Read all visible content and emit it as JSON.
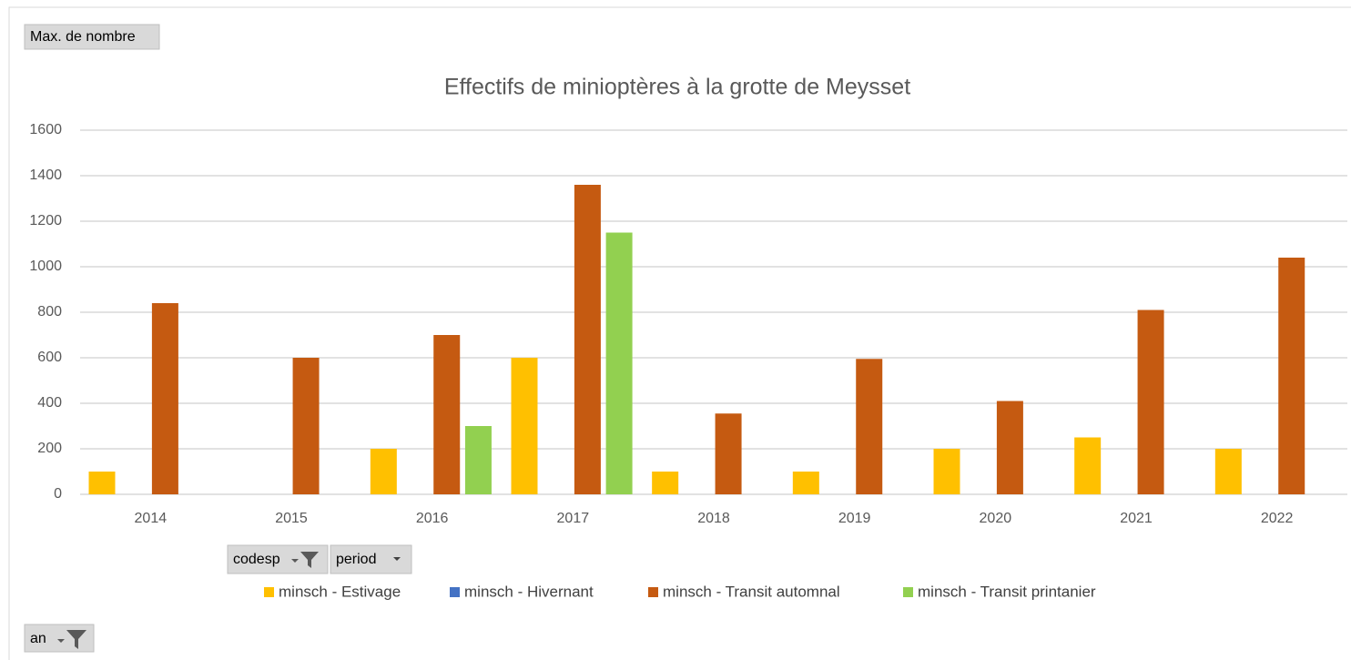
{
  "chart_data": {
    "type": "bar",
    "title": "Effectifs de minioptères à la grotte de Meysset",
    "categories": [
      "2014",
      "2015",
      "2016",
      "2017",
      "2018",
      "2019",
      "2020",
      "2021",
      "2022"
    ],
    "series": [
      {
        "name": "minsch - Estivage",
        "color": "#ffc000",
        "values": [
          100,
          null,
          200,
          600,
          100,
          100,
          200,
          250,
          200
        ]
      },
      {
        "name": "minsch - Hivernant",
        "color": "#4472c4",
        "values": [
          null,
          null,
          null,
          null,
          null,
          null,
          null,
          null,
          null
        ]
      },
      {
        "name": "minsch - Transit automnal",
        "color": "#c55a11",
        "values": [
          840,
          600,
          700,
          1360,
          355,
          595,
          410,
          810,
          1040
        ]
      },
      {
        "name": "minsch - Transit printanier",
        "color": "#92d050",
        "values": [
          null,
          null,
          300,
          1150,
          null,
          null,
          null,
          null,
          null
        ]
      }
    ],
    "ylim": [
      0,
      1600
    ],
    "yticks": [
      0,
      200,
      400,
      600,
      800,
      1000,
      1200,
      1400,
      1600
    ],
    "grid": true
  },
  "ui": {
    "value_field": "Max. de nombre",
    "series_fields": [
      "codesp",
      "period"
    ],
    "axis_field": "an"
  }
}
